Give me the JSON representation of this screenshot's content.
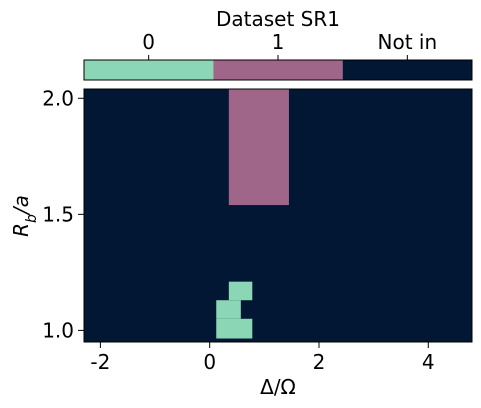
{
  "chart_data": {
    "type": "heatmap",
    "title": "Dataset SR1",
    "xlabel": "Δ/Ω",
    "ylabel": "R_b/a",
    "xlim": [
      -2.3,
      4.8
    ],
    "ylim": [
      0.95,
      2.04
    ],
    "x_ticks": [
      -2,
      0,
      2,
      4
    ],
    "y_ticks": [
      1.0,
      1.5,
      2.0
    ],
    "grid": false,
    "background_category": "Not in",
    "colorbar": {
      "position": "top",
      "categories": [
        {
          "label": "0",
          "color": "#8bd6b4"
        },
        {
          "label": "1",
          "color": "#a0668a"
        },
        {
          "label": "Not in",
          "color": "#011733"
        }
      ]
    },
    "regions": [
      {
        "category": "1",
        "x0": 0.35,
        "x1": 1.45,
        "y0": 1.54,
        "y1": 2.04
      },
      {
        "category": "0",
        "x0": 0.35,
        "x1": 0.78,
        "y0": 1.13,
        "y1": 1.21
      },
      {
        "category": "0",
        "x0": 0.12,
        "x1": 0.57,
        "y0": 1.05,
        "y1": 1.13
      },
      {
        "category": "0",
        "x0": 0.12,
        "x1": 0.78,
        "y0": 0.965,
        "y1": 1.05
      }
    ]
  }
}
